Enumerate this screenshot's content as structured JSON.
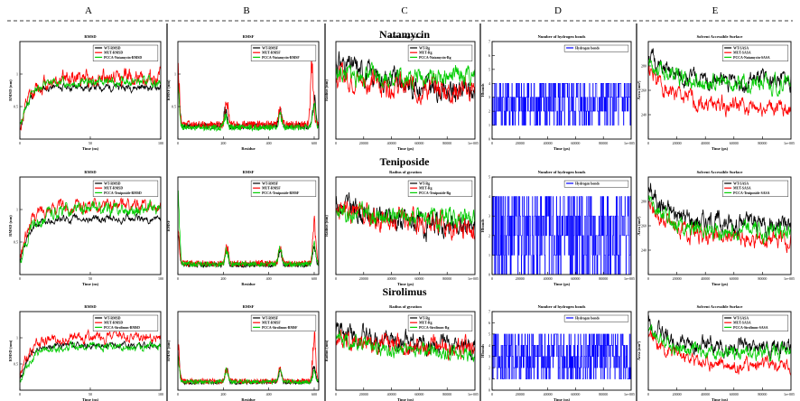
{
  "column_letters": [
    "A",
    "B",
    "C",
    "D",
    "E"
  ],
  "row_titles": [
    "Natamycin",
    "Teniposide",
    "Sirolimus"
  ],
  "colors": {
    "black": "#000000",
    "red": "#ff0000",
    "green": "#00cc00",
    "blue": "#0000ff"
  },
  "chart_data": [
    {
      "id": "rmsd-natamycin",
      "col": 0,
      "row": 0,
      "type": "line",
      "title": "RMSD",
      "xlabel": "Time (ns)",
      "ylabel": "RMSD (nm)",
      "xlim": [
        0,
        100
      ],
      "ylim": [
        0,
        1.5
      ],
      "xticks": [
        0,
        50,
        100
      ],
      "yticks": [
        0.5,
        1
      ],
      "series": [
        {
          "name": "WT-RMSD",
          "color": "#000000",
          "start": 0.15,
          "level": 0.8,
          "amp": 0.04,
          "rise": 5,
          "seed": 11
        },
        {
          "name": "MUT-RMSD",
          "color": "#ff0000",
          "start": 0.2,
          "level": 0.95,
          "amp": 0.09,
          "rise": 8,
          "seed": 12
        },
        {
          "name": "PCCA-Natamycin-RMSD",
          "color": "#00cc00",
          "start": 0.2,
          "level": 0.88,
          "amp": 0.05,
          "rise": 6,
          "seed": 13
        }
      ]
    },
    {
      "id": "rmsf-natamycin",
      "col": 1,
      "row": 0,
      "type": "line",
      "title": "RMSF",
      "xlabel": "Residue",
      "ylabel": "RMSF (nm)",
      "xlim": [
        0,
        620
      ],
      "ylim": [
        0,
        1.5
      ],
      "xticks": [
        0,
        200,
        400,
        600
      ],
      "yticks": [
        0.5,
        1
      ],
      "series": [
        {
          "name": "WT-RMSF",
          "color": "#000000",
          "level": 0.2,
          "amp": 0.05,
          "peaks": [
            [
              0,
              1.0
            ],
            [
              210,
              0.5
            ],
            [
              450,
              0.5
            ],
            [
              600,
              0.7
            ]
          ],
          "seed": 21
        },
        {
          "name": "MUT-RMSF",
          "color": "#ff0000",
          "level": 0.22,
          "amp": 0.06,
          "peaks": [
            [
              0,
              1.35
            ],
            [
              215,
              0.7
            ],
            [
              450,
              0.55
            ],
            [
              590,
              1.3
            ]
          ],
          "seed": 22
        },
        {
          "name": "PCCA-Natamycin-RMSF",
          "color": "#00cc00",
          "level": 0.18,
          "amp": 0.05,
          "peaks": [
            [
              0,
              0.9
            ],
            [
              210,
              0.4
            ],
            [
              450,
              0.45
            ],
            [
              600,
              0.6
            ]
          ],
          "seed": 23
        }
      ]
    },
    {
      "id": "rg-natamycin",
      "col": 2,
      "row": 0,
      "type": "line",
      "title": "Radius of gyration",
      "xlabel": "Time (ps)",
      "ylabel": "Radius (nm)",
      "xlim": [
        0,
        100000
      ],
      "ylim": [
        2.1,
        2.4
      ],
      "xticks": [
        0,
        20000,
        40000,
        60000,
        80000
      ],
      "ytick_labels": false,
      "xtick_labels": [
        "0",
        "20000",
        "40000",
        "60000",
        "80000"
      ],
      "x_end_label": "1e+005",
      "series": [
        {
          "name": "WT-Rg",
          "color": "#000000",
          "start": 2.34,
          "level": 2.22,
          "amp": 0.025,
          "rise": 60,
          "seed": 31
        },
        {
          "name": "MUT-Rg",
          "color": "#ff0000",
          "start": 2.3,
          "level": 2.24,
          "amp": 0.025,
          "rise": 50,
          "seed": 32
        },
        {
          "name": "PCCA-Natamycin-Rg",
          "color": "#00cc00",
          "start": 2.3,
          "level": 2.29,
          "amp": 0.02,
          "rise": 40,
          "seed": 33
        }
      ]
    },
    {
      "id": "hb-natamycin",
      "col": 3,
      "row": 0,
      "type": "line",
      "title": "Number of hydrogen bonds",
      "xlabel": "Time (ps)",
      "ylabel": "Hbonds",
      "xlim": [
        0,
        100000
      ],
      "ylim": [
        0,
        7
      ],
      "xticks": [
        0,
        20000,
        40000,
        60000,
        80000
      ],
      "xtick_labels": [
        "0",
        "20000",
        "40000",
        "60000",
        "80000"
      ],
      "x_end_label": "1e+005",
      "yticks": [
        0,
        1,
        2,
        3,
        4,
        5,
        6,
        7
      ],
      "series": [
        {
          "name": "Hydrogen bonds",
          "color": "#0000ff",
          "discrete": true,
          "values": [
            1,
            2,
            3,
            4
          ],
          "seed": 41
        }
      ]
    },
    {
      "id": "sasa-natamycin",
      "col": 4,
      "row": 0,
      "type": "line",
      "title": "Solvent Accessible Surface",
      "xlabel": "Time (ps)",
      "ylabel": "Area (nm²)",
      "xlim": [
        0,
        100000
      ],
      "ylim": [
        220,
        300
      ],
      "xticks": [
        0,
        20000,
        40000,
        60000,
        80000
      ],
      "xtick_labels": [
        "0",
        "20000",
        "40000",
        "60000",
        "80000"
      ],
      "x_end_label": "1e+005",
      "yticks": [
        240,
        260,
        280
      ],
      "series": [
        {
          "name": "WT-SASA",
          "color": "#000000",
          "start": 290,
          "level": 268,
          "amp": 5,
          "rise": 10,
          "seed": 51
        },
        {
          "name": "MUT-SASA",
          "color": "#ff0000",
          "start": 275,
          "level": 245,
          "amp": 5,
          "rise": 20,
          "seed": 52
        },
        {
          "name": "PCCA-Natamycin-SASA",
          "color": "#00cc00",
          "start": 285,
          "level": 265,
          "amp": 5,
          "rise": 15,
          "seed": 53
        }
      ]
    },
    {
      "id": "rmsd-teniposide",
      "col": 0,
      "row": 1,
      "type": "line",
      "title": "RMSD",
      "xlabel": "Time (ns)",
      "ylabel": "RMSD (nm)",
      "xlim": [
        0,
        100
      ],
      "ylim": [
        0,
        1.5
      ],
      "xticks": [
        0,
        50,
        100
      ],
      "yticks": [
        0.5,
        1
      ],
      "series": [
        {
          "name": "WT-RMSD",
          "color": "#000000",
          "start": 0.2,
          "level": 0.85,
          "amp": 0.04,
          "rise": 6,
          "seed": 61
        },
        {
          "name": "MUT-RMSD",
          "color": "#ff0000",
          "start": 0.25,
          "level": 1.05,
          "amp": 0.07,
          "rise": 6,
          "seed": 62
        },
        {
          "name": "PCCA-Teniposide-RMSD",
          "color": "#00cc00",
          "start": 0.2,
          "level": 1.0,
          "amp": 0.07,
          "rise": 8,
          "seed": 63
        }
      ]
    },
    {
      "id": "rmsf-teniposide",
      "col": 1,
      "row": 1,
      "type": "line",
      "title": "RMSF",
      "xlabel": "Residue",
      "ylabel": "RMSF",
      "xlim": [
        0,
        620
      ],
      "ylim": [
        0,
        1.5
      ],
      "xticks": [
        0,
        200,
        400,
        600
      ],
      "ytick_labels": false,
      "series": [
        {
          "name": "WT-RMSF",
          "color": "#000000",
          "level": 0.15,
          "amp": 0.04,
          "peaks": [
            [
              0,
              0.8
            ],
            [
              215,
              0.45
            ],
            [
              450,
              0.45
            ],
            [
              600,
              0.5
            ]
          ],
          "seed": 71
        },
        {
          "name": "MUT-RMSF",
          "color": "#ff0000",
          "level": 0.17,
          "amp": 0.05,
          "peaks": [
            [
              0,
              0.7
            ],
            [
              215,
              0.5
            ],
            [
              450,
              0.5
            ],
            [
              600,
              1.0
            ]
          ],
          "seed": 72
        },
        {
          "name": "PCCA-Teniposide-RMSF",
          "color": "#00cc00",
          "level": 0.16,
          "amp": 0.04,
          "peaks": [
            [
              0,
              1.4
            ],
            [
              215,
              0.45
            ],
            [
              450,
              0.5
            ],
            [
              600,
              0.55
            ]
          ],
          "seed": 73
        }
      ]
    },
    {
      "id": "rg-teniposide",
      "col": 2,
      "row": 1,
      "type": "line",
      "title": "Radius of gyration",
      "xlabel": "Time (ps)",
      "ylabel": "Radius (nm)",
      "xlim": [
        0,
        100000
      ],
      "ylim": [
        2.1,
        2.4
      ],
      "xticks": [
        0,
        20000,
        40000,
        60000,
        80000
      ],
      "ytick_labels": false,
      "xtick_labels": [
        "0",
        "20000",
        "40000",
        "60000",
        "80000"
      ],
      "x_end_label": "1e+005",
      "series": [
        {
          "name": "WT-Rg",
          "color": "#000000",
          "start": 2.32,
          "level": 2.22,
          "amp": 0.025,
          "rise": 60,
          "seed": 81
        },
        {
          "name": "MUT-Rg",
          "color": "#ff0000",
          "start": 2.3,
          "level": 2.24,
          "amp": 0.025,
          "rise": 50,
          "seed": 82
        },
        {
          "name": "PCCA-Teniposide-Rg",
          "color": "#00cc00",
          "start": 2.3,
          "level": 2.27,
          "amp": 0.02,
          "rise": 40,
          "seed": 83
        }
      ]
    },
    {
      "id": "hb-teniposide",
      "col": 3,
      "row": 1,
      "type": "line",
      "title": "Number of hydrogen bonds",
      "xlabel": "Time (ps)",
      "ylabel": "Hbonds",
      "xlim": [
        0,
        100000
      ],
      "ylim": [
        0,
        5
      ],
      "xticks": [
        0,
        20000,
        40000,
        60000,
        80000
      ],
      "xtick_labels": [
        "0",
        "20000",
        "40000",
        "60000",
        "80000"
      ],
      "x_end_label": "1e+005",
      "yticks": [
        0,
        1,
        2,
        3,
        4,
        5
      ],
      "series": [
        {
          "name": "Hydrogen bonds",
          "color": "#0000ff",
          "discrete": true,
          "values": [
            0,
            1,
            2,
            3,
            4
          ],
          "seed": 91
        }
      ]
    },
    {
      "id": "sasa-teniposide",
      "col": 4,
      "row": 1,
      "type": "line",
      "title": "Solvent Accessible Surface",
      "xlabel": "Time (ps)",
      "ylabel": "Area (nm²)",
      "xlim": [
        0,
        100000
      ],
      "ylim": [
        220,
        300
      ],
      "xticks": [
        0,
        20000,
        40000,
        60000,
        80000
      ],
      "xtick_labels": [
        "0",
        "20000",
        "40000",
        "60000",
        "80000"
      ],
      "x_end_label": "1e+005",
      "yticks": [
        240,
        260,
        280
      ],
      "series": [
        {
          "name": "WT-SASA",
          "color": "#000000",
          "start": 290,
          "level": 262,
          "amp": 6,
          "rise": 15,
          "seed": 101
        },
        {
          "name": "MUT-SASA",
          "color": "#ff0000",
          "start": 275,
          "level": 248,
          "amp": 5,
          "rise": 20,
          "seed": 102
        },
        {
          "name": "PCCA-Teniposide-SASA",
          "color": "#00cc00",
          "start": 280,
          "level": 255,
          "amp": 5,
          "rise": 15,
          "seed": 103
        }
      ]
    },
    {
      "id": "rmsd-sirolimus",
      "col": 0,
      "row": 2,
      "type": "line",
      "title": "RMSD",
      "xlabel": "Time (ns)",
      "ylabel": "RMSD (nm)",
      "xlim": [
        0,
        100
      ],
      "ylim": [
        0,
        1.5
      ],
      "xticks": [
        0,
        50,
        100
      ],
      "yticks": [
        0.5,
        1
      ],
      "series": [
        {
          "name": "WT-RMSD",
          "color": "#000000",
          "start": 0.2,
          "level": 0.85,
          "amp": 0.04,
          "rise": 6,
          "seed": 111
        },
        {
          "name": "MUT-RMSD",
          "color": "#ff0000",
          "start": 0.25,
          "level": 1.0,
          "amp": 0.07,
          "rise": 6,
          "seed": 112
        },
        {
          "name": "PCCA-Sirolimus-RMSD",
          "color": "#00cc00",
          "start": 0.2,
          "level": 0.82,
          "amp": 0.05,
          "rise": 8,
          "seed": 113
        }
      ]
    },
    {
      "id": "rmsf-sirolimus",
      "col": 1,
      "row": 2,
      "type": "line",
      "title": "RMSF",
      "xlabel": "Residue",
      "ylabel": "RMSF (nm)",
      "xlim": [
        0,
        620
      ],
      "ylim": [
        0,
        1.5
      ],
      "xticks": [
        0,
        200,
        400,
        600
      ],
      "ytick_labels": false,
      "series": [
        {
          "name": "WT-RMSF",
          "color": "#000000",
          "level": 0.15,
          "amp": 0.04,
          "peaks": [
            [
              0,
              0.9
            ],
            [
              215,
              0.45
            ],
            [
              450,
              0.45
            ],
            [
              600,
              0.5
            ]
          ],
          "seed": 121
        },
        {
          "name": "MUT-RMSF",
          "color": "#ff0000",
          "level": 0.17,
          "amp": 0.05,
          "peaks": [
            [
              0,
              1.1
            ],
            [
              215,
              0.5
            ],
            [
              450,
              0.5
            ],
            [
              600,
              1.2
            ]
          ],
          "seed": 122
        },
        {
          "name": "PCCA-Sirolimus-RMSF",
          "color": "#00cc00",
          "level": 0.16,
          "amp": 0.04,
          "peaks": [
            [
              0,
              0.7
            ],
            [
              215,
              0.45
            ],
            [
              450,
              0.45
            ],
            [
              600,
              0.4
            ]
          ],
          "seed": 123
        }
      ]
    },
    {
      "id": "rg-sirolimus",
      "col": 2,
      "row": 2,
      "type": "line",
      "title": "Radius of gyration",
      "xlabel": "Time (ps)",
      "ylabel": "Radius (nm)",
      "xlim": [
        0,
        100000
      ],
      "ylim": [
        2.1,
        2.4
      ],
      "xticks": [
        0,
        20000,
        40000,
        60000,
        80000
      ],
      "ytick_labels": false,
      "xtick_labels": [
        "0",
        "20000",
        "40000",
        "60000",
        "80000"
      ],
      "x_end_label": "1e+005",
      "series": [
        {
          "name": "WT-Rg",
          "color": "#000000",
          "start": 2.33,
          "level": 2.24,
          "amp": 0.025,
          "rise": 60,
          "seed": 131
        },
        {
          "name": "MUT-Rg",
          "color": "#ff0000",
          "start": 2.3,
          "level": 2.25,
          "amp": 0.025,
          "rise": 50,
          "seed": 132
        },
        {
          "name": "PCCA-Sirolimus-Rg",
          "color": "#00cc00",
          "start": 2.3,
          "level": 2.23,
          "amp": 0.02,
          "rise": 40,
          "seed": 133
        }
      ]
    },
    {
      "id": "hb-sirolimus",
      "col": 3,
      "row": 2,
      "type": "line",
      "title": "Number of hydrogen bonds",
      "xlabel": "Time (ps)",
      "ylabel": "Hbonds",
      "xlim": [
        0,
        100000
      ],
      "ylim": [
        0,
        7
      ],
      "xticks": [
        0,
        20000,
        40000,
        60000,
        80000
      ],
      "xtick_labels": [
        "0",
        "20000",
        "40000",
        "60000",
        "80000"
      ],
      "x_end_label": "1e+005",
      "yticks": [
        0,
        1,
        2,
        3,
        4,
        5,
        6,
        7
      ],
      "series": [
        {
          "name": "Hydrogen bonds",
          "color": "#0000ff",
          "discrete": true,
          "values": [
            1,
            2,
            3,
            4,
            5
          ],
          "seed": 141
        }
      ]
    },
    {
      "id": "sasa-sirolimus",
      "col": 4,
      "row": 2,
      "type": "line",
      "title": "Solvent Accessible Surface",
      "xlabel": "Time (ps)",
      "ylabel": "Area (nm²)",
      "xlim": [
        0,
        100000
      ],
      "ylim": [
        220,
        300
      ],
      "xticks": [
        0,
        20000,
        40000,
        60000,
        80000
      ],
      "xtick_labels": [
        "0",
        "20000",
        "40000",
        "60000",
        "80000"
      ],
      "x_end_label": "1e+005",
      "ytick_labels": false,
      "series": [
        {
          "name": "WT-SASA",
          "color": "#000000",
          "start": 290,
          "level": 262,
          "amp": 6,
          "rise": 15,
          "seed": 151
        },
        {
          "name": "MUT-SASA",
          "color": "#ff0000",
          "start": 275,
          "level": 245,
          "amp": 5,
          "rise": 20,
          "seed": 152
        },
        {
          "name": "PCCA-Sirolimus-SASA",
          "color": "#00cc00",
          "start": 282,
          "level": 258,
          "amp": 5,
          "rise": 15,
          "seed": 153
        }
      ]
    }
  ]
}
